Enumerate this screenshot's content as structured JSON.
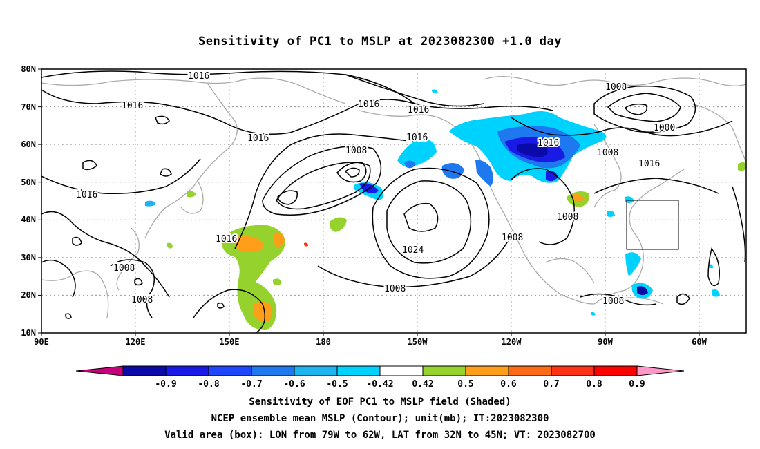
{
  "title": "Sensitivity of PC1 to MSLP at 2023082300 +1.0 day",
  "lat_ticks": [
    "80N",
    "70N",
    "60N",
    "50N",
    "40N",
    "30N",
    "20N",
    "10N"
  ],
  "lon_ticks": [
    "90E",
    "120E",
    "150E",
    "180",
    "150W",
    "120W",
    "90W",
    "60W"
  ],
  "contour_labels": [
    "1016",
    "1016",
    "1016",
    "1016",
    "1016",
    "1016",
    "1016",
    "1016",
    "1016",
    "1016",
    "1008",
    "1008",
    "1008",
    "1008",
    "1008",
    "1008",
    "1008",
    "1008",
    "1008",
    "1024",
    "1000"
  ],
  "colorbar": {
    "ticks": [
      "-0.9",
      "-0.8",
      "-0.7",
      "-0.6",
      "-0.5",
      "-0.42",
      "0.42",
      "0.5",
      "0.6",
      "0.7",
      "0.8",
      "0.9"
    ],
    "colors": [
      "#c8007a",
      "#0a0aa8",
      "#1a1ae6",
      "#1e46ff",
      "#1e78f0",
      "#1eb4f0",
      "#00d2ff",
      "#ffffff",
      "#96d22d",
      "#ff9f19",
      "#ff6a14",
      "#ff3214",
      "#ff0000",
      "#ff96c8"
    ]
  },
  "captions": [
    "Sensitivity of EOF PC1 to MSLP field (Shaded)",
    "NCEP ensemble mean MSLP (Contour); unit(mb); IT:2023082300",
    "Valid area (box): LON from 79W to 62W, LAT from 32N to 45N; VT: 2023082700"
  ]
}
